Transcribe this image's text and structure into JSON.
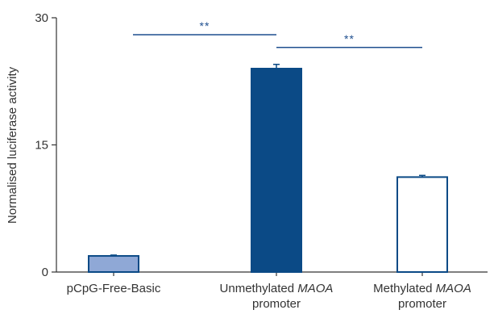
{
  "chart_data": {
    "type": "bar",
    "ylabel": "Normalised luciferase activity",
    "ylim": [
      0,
      30
    ],
    "yticks": [
      "0",
      "15",
      "30"
    ],
    "grid": false,
    "categories": [
      {
        "parts": [
          {
            "text": "pCpG-Free-Basic",
            "italic": false
          }
        ],
        "line2": ""
      },
      {
        "parts": [
          {
            "text": "Unmethylated ",
            "italic": false
          },
          {
            "text": "MAOA",
            "italic": true
          }
        ],
        "line2": "promoter"
      },
      {
        "parts": [
          {
            "text": "Methylated ",
            "italic": false
          },
          {
            "text": "MAOA",
            "italic": true
          }
        ],
        "line2": "promoter"
      }
    ],
    "values": [
      1.9,
      24.0,
      11.2
    ],
    "errors": [
      0.1,
      0.5,
      0.2
    ],
    "bar_fills": [
      "#8fa8d6",
      "#0b4a86",
      "#ffffff"
    ],
    "bar_strokes": [
      "#0b4a86",
      "#0b4a86",
      "#0b4a86"
    ],
    "significance": [
      {
        "from": 0,
        "to": 1,
        "y": 28.0,
        "label": "**"
      },
      {
        "from": 1,
        "to": 2,
        "y": 26.5,
        "label": "**"
      }
    ],
    "colors": {
      "axis": "#333333",
      "significance": "#1f4f8f"
    }
  }
}
